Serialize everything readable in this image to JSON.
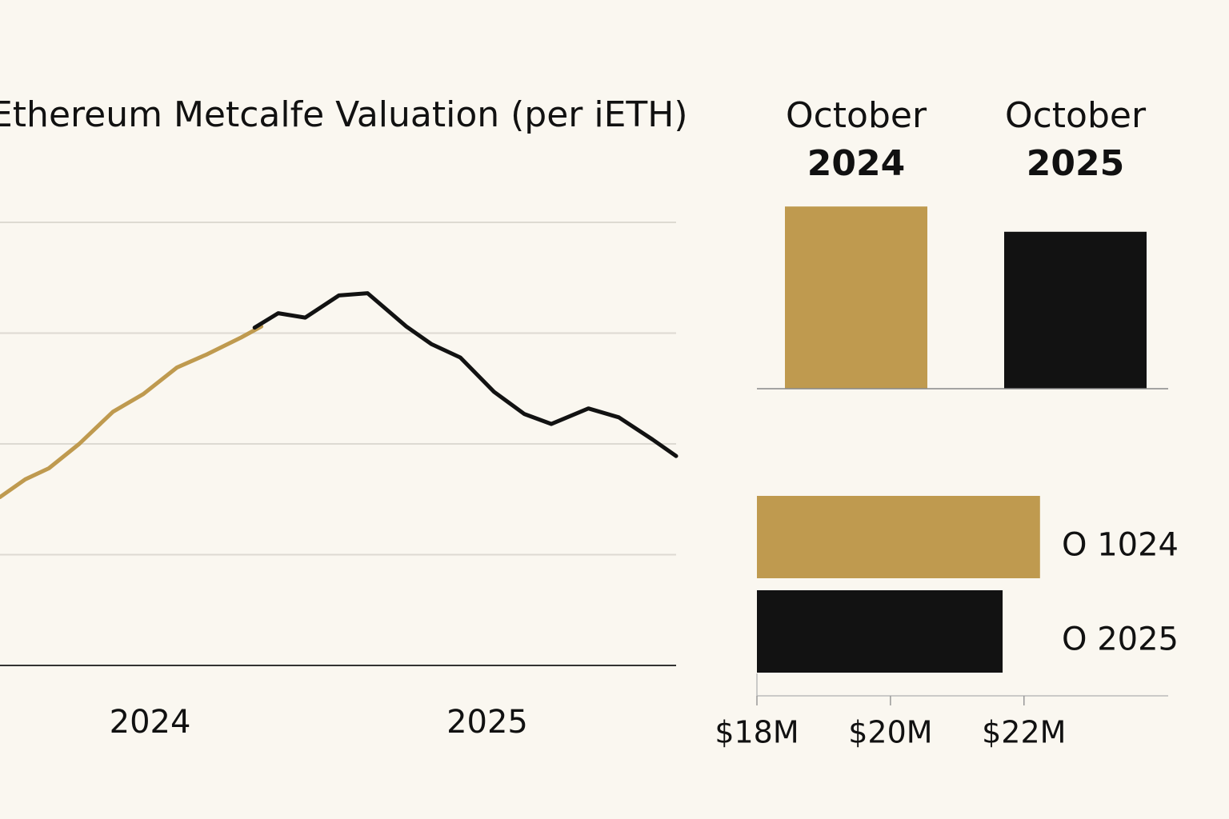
{
  "chart_data": [
    {
      "type": "line",
      "title": "Ethereum Metcalfe Valuation (per iETH)",
      "xlim": [
        2023.555,
        2025.56
      ],
      "xticks": [
        2024,
        2025
      ],
      "ylim": [
        0,
        4
      ],
      "y_gridlines": [
        1,
        2,
        3,
        4
      ],
      "grid": true,
      "series": [
        {
          "color": "#bf9a4f",
          "x": [
            2023.555,
            2023.63,
            2023.7,
            2023.79,
            2023.89,
            2023.98,
            2024.08,
            2024.17,
            2024.27,
            2024.33
          ],
          "values": [
            1.52,
            1.68,
            1.78,
            2.0,
            2.29,
            2.45,
            2.69,
            2.81,
            2.96,
            3.06
          ]
        },
        {
          "color": "#121212",
          "x": [
            2024.31,
            2024.38,
            2024.46,
            2024.56,
            2024.645,
            2024.76,
            2024.835,
            2024.92,
            2025.02,
            2025.11,
            2025.19,
            2025.3,
            2025.39,
            2025.49,
            2025.56
          ],
          "values": [
            3.05,
            3.18,
            3.14,
            3.34,
            3.36,
            3.06,
            2.9,
            2.78,
            2.47,
            2.27,
            2.18,
            2.32,
            2.24,
            2.04,
            1.89
          ]
        }
      ]
    },
    {
      "type": "bar",
      "categories": [
        [
          "October",
          "2024"
        ],
        [
          "October",
          "2025"
        ]
      ],
      "values": [
        22.24,
        21.68
      ],
      "colors": [
        "#bf9a4f",
        "#121212"
      ],
      "ylim": [
        18.2,
        22.74
      ]
    },
    {
      "type": "hbar",
      "categories": [
        "O 1024",
        "O 2025"
      ],
      "values": [
        22.24,
        21.68
      ],
      "colors": [
        "#bf9a4f",
        "#121212"
      ],
      "xlim": [
        18,
        24.16
      ],
      "xticks": [
        {
          "value": 18,
          "label": "$18M"
        },
        {
          "value": 20,
          "label": "$20M"
        },
        {
          "value": 22,
          "label": "$22M"
        }
      ]
    }
  ]
}
